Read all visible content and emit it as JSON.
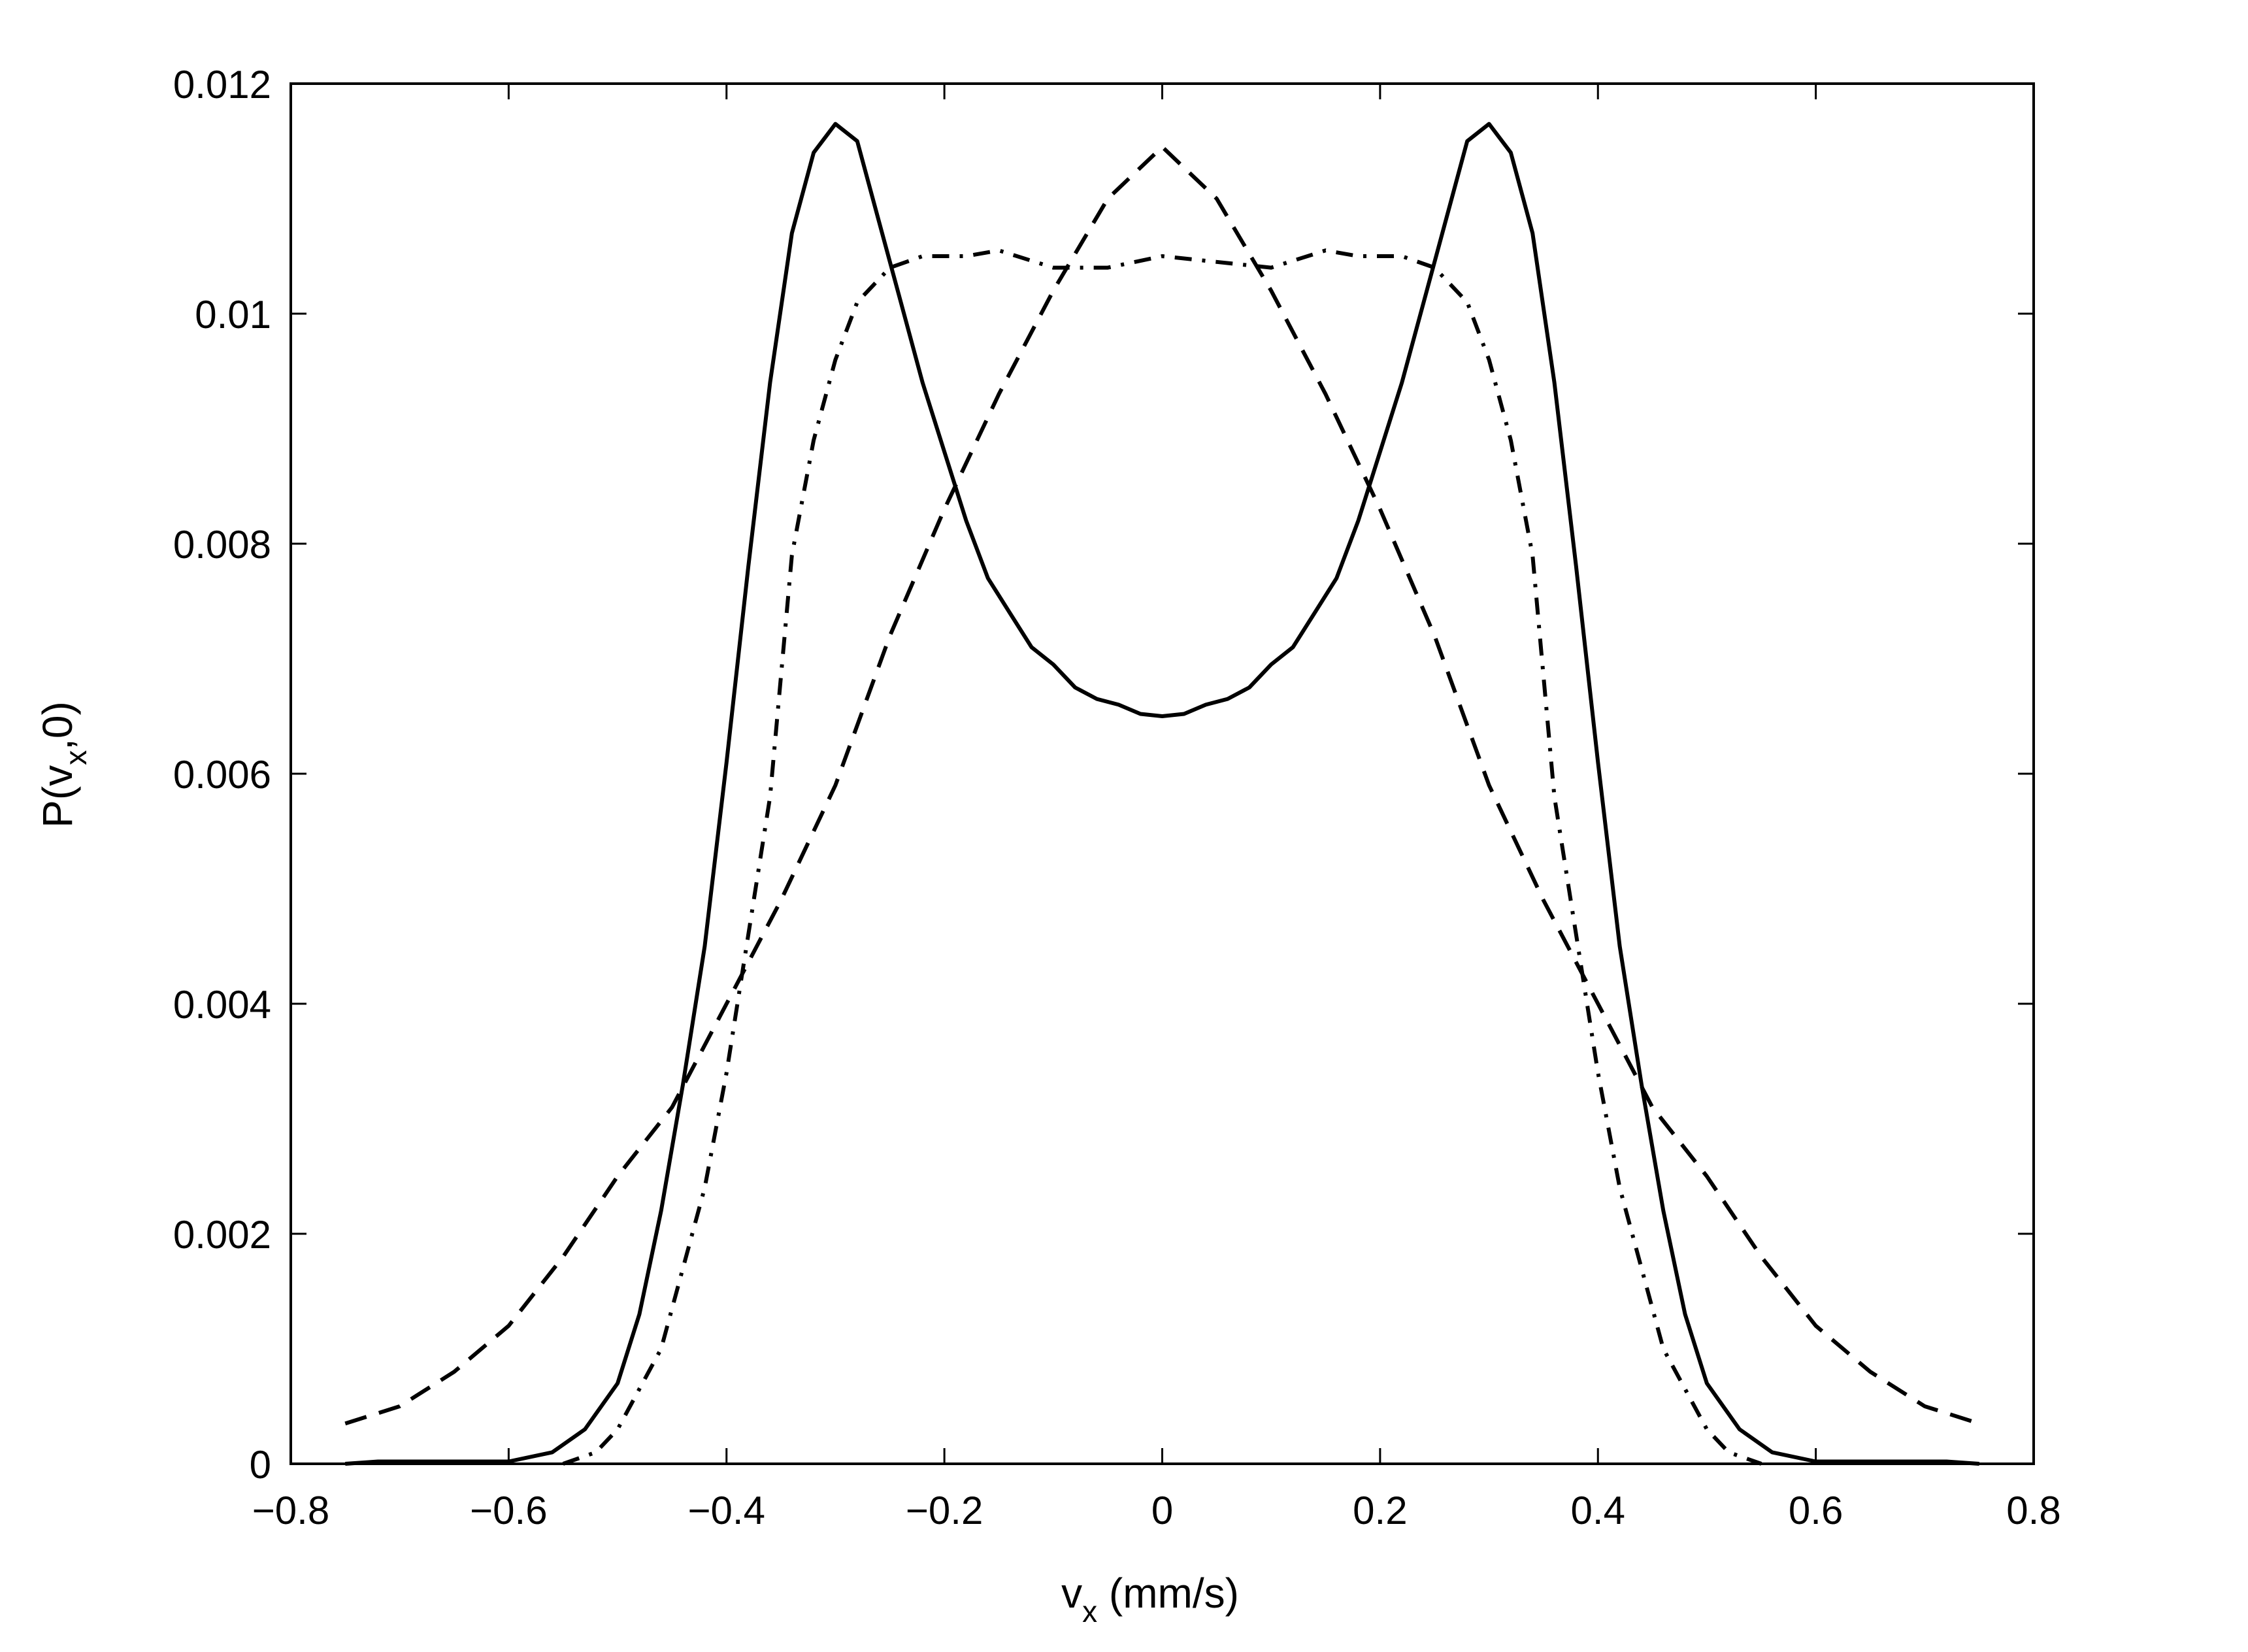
{
  "chart_data": {
    "type": "line",
    "title": "",
    "xlabel": {
      "main": "v",
      "sub": "x",
      "rest": " (mm/s)"
    },
    "ylabel": {
      "main": "P(v",
      "sub": "x",
      "rest": ",0)"
    },
    "xlim": [
      -0.8,
      0.8
    ],
    "ylim": [
      0,
      0.012
    ],
    "xticks": [
      -0.8,
      -0.6,
      -0.4,
      -0.2,
      0,
      0.2,
      0.4,
      0.6,
      0.8
    ],
    "xtick_labels": [
      "−0.8",
      "−0.6",
      "−0.4",
      "−0.2",
      "0",
      "0.2",
      "0.4",
      "0.6",
      "0.8"
    ],
    "yticks": [
      0,
      0.002,
      0.004,
      0.006,
      0.008,
      0.01,
      0.012
    ],
    "ytick_labels": [
      "0",
      "0.002",
      "0.004",
      "0.006",
      "0.008",
      "0.01",
      "0.012"
    ],
    "grid": false,
    "series": [
      {
        "style": "solid",
        "color": "#000000",
        "points": [
          [
            -0.75,
            0
          ],
          [
            -0.72,
            2e-05
          ],
          [
            -0.6,
            2e-05
          ],
          [
            -0.56,
            0.0001
          ],
          [
            -0.53,
            0.0003
          ],
          [
            -0.5,
            0.0007
          ],
          [
            -0.48,
            0.0013
          ],
          [
            -0.46,
            0.0022
          ],
          [
            -0.44,
            0.0033
          ],
          [
            -0.42,
            0.0045
          ],
          [
            -0.4,
            0.0061
          ],
          [
            -0.38,
            0.0078
          ],
          [
            -0.36,
            0.0094
          ],
          [
            -0.34,
            0.0107
          ],
          [
            -0.32,
            0.0114
          ],
          [
            -0.3,
            0.01165
          ],
          [
            -0.28,
            0.0115
          ],
          [
            -0.26,
            0.0108
          ],
          [
            -0.24,
            0.0101
          ],
          [
            -0.22,
            0.0094
          ],
          [
            -0.2,
            0.0088
          ],
          [
            -0.18,
            0.0082
          ],
          [
            -0.16,
            0.0077
          ],
          [
            -0.14,
            0.0074
          ],
          [
            -0.12,
            0.0071
          ],
          [
            -0.1,
            0.00695
          ],
          [
            -0.08,
            0.00675
          ],
          [
            -0.06,
            0.00665
          ],
          [
            -0.04,
            0.0066
          ],
          [
            -0.02,
            0.00652
          ],
          [
            0,
            0.0065
          ],
          [
            0.02,
            0.00652
          ],
          [
            0.04,
            0.0066
          ],
          [
            0.06,
            0.00665
          ],
          [
            0.08,
            0.00675
          ],
          [
            0.1,
            0.00695
          ],
          [
            0.12,
            0.0071
          ],
          [
            0.14,
            0.0074
          ],
          [
            0.16,
            0.0077
          ],
          [
            0.18,
            0.0082
          ],
          [
            0.2,
            0.0088
          ],
          [
            0.22,
            0.0094
          ],
          [
            0.24,
            0.0101
          ],
          [
            0.26,
            0.0108
          ],
          [
            0.28,
            0.0115
          ],
          [
            0.3,
            0.01165
          ],
          [
            0.32,
            0.0114
          ],
          [
            0.34,
            0.0107
          ],
          [
            0.36,
            0.0094
          ],
          [
            0.38,
            0.0078
          ],
          [
            0.4,
            0.0061
          ],
          [
            0.42,
            0.0045
          ],
          [
            0.44,
            0.0033
          ],
          [
            0.46,
            0.0022
          ],
          [
            0.48,
            0.0013
          ],
          [
            0.5,
            0.0007
          ],
          [
            0.53,
            0.0003
          ],
          [
            0.56,
            0.0001
          ],
          [
            0.6,
            2e-05
          ],
          [
            0.72,
            2e-05
          ],
          [
            0.75,
            0
          ]
        ]
      },
      {
        "style": "dashed",
        "color": "#000000",
        "points": [
          [
            -0.75,
            0.00035
          ],
          [
            -0.7,
            0.0005
          ],
          [
            -0.65,
            0.0008
          ],
          [
            -0.6,
            0.0012
          ],
          [
            -0.55,
            0.0018
          ],
          [
            -0.5,
            0.0025
          ],
          [
            -0.45,
            0.0031
          ],
          [
            -0.4,
            0.004
          ],
          [
            -0.35,
            0.0049
          ],
          [
            -0.3,
            0.0059
          ],
          [
            -0.25,
            0.0072
          ],
          [
            -0.2,
            0.0083
          ],
          [
            -0.15,
            0.0093
          ],
          [
            -0.1,
            0.0102
          ],
          [
            -0.05,
            0.011
          ],
          [
            0,
            0.01145
          ],
          [
            0.05,
            0.011
          ],
          [
            0.1,
            0.0102
          ],
          [
            0.15,
            0.0093
          ],
          [
            0.2,
            0.0083
          ],
          [
            0.25,
            0.0072
          ],
          [
            0.3,
            0.0059
          ],
          [
            0.35,
            0.0049
          ],
          [
            0.4,
            0.004
          ],
          [
            0.45,
            0.0031
          ],
          [
            0.5,
            0.0025
          ],
          [
            0.55,
            0.0018
          ],
          [
            0.6,
            0.0012
          ],
          [
            0.65,
            0.0008
          ],
          [
            0.7,
            0.0005
          ],
          [
            0.75,
            0.00035
          ]
        ]
      },
      {
        "style": "dashdot",
        "color": "#000000",
        "points": [
          [
            -0.55,
            0
          ],
          [
            -0.52,
            0.0001
          ],
          [
            -0.5,
            0.0003
          ],
          [
            -0.46,
            0.001
          ],
          [
            -0.42,
            0.0024
          ],
          [
            -0.4,
            0.0034
          ],
          [
            -0.38,
            0.0046
          ],
          [
            -0.36,
            0.0058
          ],
          [
            -0.34,
            0.0079
          ],
          [
            -0.32,
            0.0089
          ],
          [
            -0.3,
            0.0096
          ],
          [
            -0.28,
            0.0101
          ],
          [
            -0.25,
            0.0104
          ],
          [
            -0.22,
            0.0105
          ],
          [
            -0.18,
            0.0105
          ],
          [
            -0.15,
            0.01055
          ],
          [
            -0.1,
            0.0104
          ],
          [
            -0.05,
            0.0104
          ],
          [
            0,
            0.0105
          ],
          [
            0.05,
            0.01045
          ],
          [
            0.1,
            0.0104
          ],
          [
            0.15,
            0.01055
          ],
          [
            0.18,
            0.0105
          ],
          [
            0.22,
            0.0105
          ],
          [
            0.25,
            0.0104
          ],
          [
            0.28,
            0.0101
          ],
          [
            0.3,
            0.0096
          ],
          [
            0.32,
            0.0089
          ],
          [
            0.34,
            0.0079
          ],
          [
            0.36,
            0.0058
          ],
          [
            0.38,
            0.0046
          ],
          [
            0.4,
            0.0034
          ],
          [
            0.42,
            0.0024
          ],
          [
            0.46,
            0.001
          ],
          [
            0.5,
            0.0003
          ],
          [
            0.52,
            0.0001
          ],
          [
            0.55,
            0
          ]
        ]
      }
    ]
  }
}
